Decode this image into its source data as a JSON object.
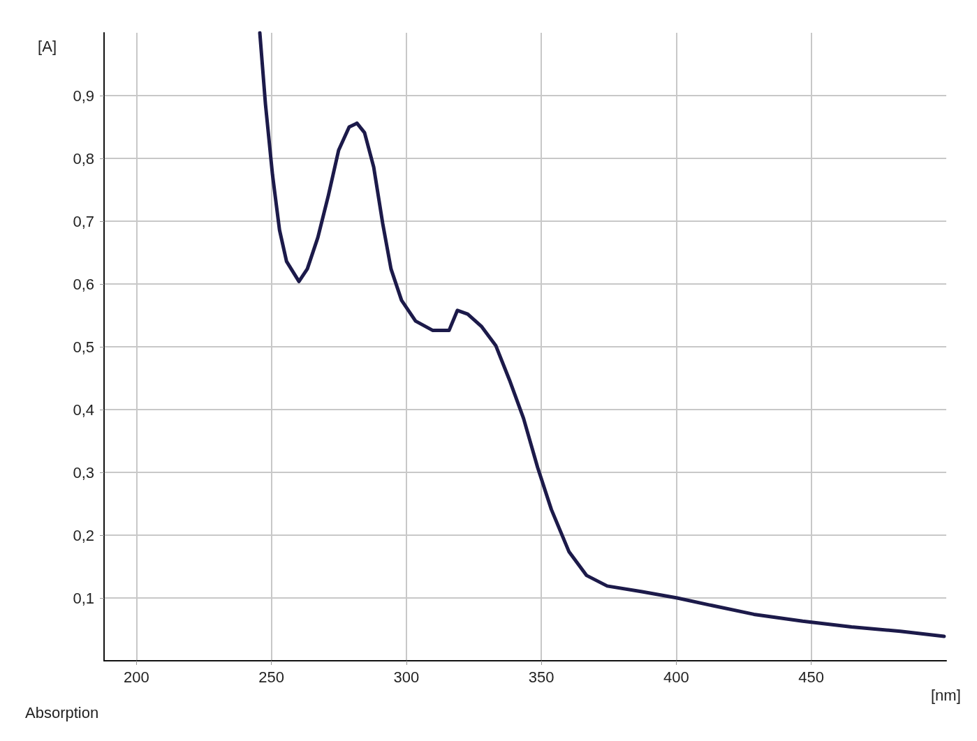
{
  "chart_data": {
    "type": "line",
    "xlabel": "[nm]",
    "ylabel": "[A]",
    "annotations": [
      "Absorption"
    ],
    "xlim": [
      188,
      500
    ],
    "xticks": [
      200,
      250,
      300,
      350,
      400,
      450
    ],
    "ylim": [
      0,
      1.0
    ],
    "yticks": [
      {
        "value": 0.1,
        "label": "0,1"
      },
      {
        "value": 0.2,
        "label": "0,2"
      },
      {
        "value": 0.3,
        "label": "0,3"
      },
      {
        "value": 0.4,
        "label": "0,4"
      },
      {
        "value": 0.5,
        "label": "0,5"
      },
      {
        "value": 0.6,
        "label": "0,6"
      },
      {
        "value": 0.7,
        "label": "0,7"
      },
      {
        "value": 0.8,
        "label": "0,8"
      },
      {
        "value": 0.9,
        "label": "0,9"
      }
    ],
    "grid": true,
    "marker": "none",
    "line_style": "solid",
    "series": [
      {
        "color": "#1c1a4a",
        "x": [
          245.7,
          247.8,
          250.4,
          253.0,
          255.6,
          260.2,
          263.3,
          267.2,
          271.1,
          274.9,
          278.8,
          281.7,
          284.5,
          287.9,
          291.2,
          294.3,
          298.2,
          303.4,
          309.8,
          315.8,
          318.9,
          322.7,
          327.9,
          333.1,
          338.2,
          343.4,
          348.6,
          353.7,
          360.2,
          366.7,
          374.4,
          387.3,
          400.3,
          413.2,
          428.7,
          446.8,
          464.9,
          483.0,
          499.2
        ],
        "values": [
          1.0,
          0.886,
          0.774,
          0.686,
          0.636,
          0.604,
          0.624,
          0.674,
          0.741,
          0.813,
          0.85,
          0.856,
          0.841,
          0.786,
          0.697,
          0.624,
          0.574,
          0.541,
          0.526,
          0.526,
          0.558,
          0.552,
          0.532,
          0.502,
          0.447,
          0.386,
          0.308,
          0.241,
          0.174,
          0.136,
          0.119,
          0.11,
          0.1,
          0.088,
          0.074,
          0.063,
          0.054,
          0.047,
          0.039
        ]
      }
    ]
  }
}
